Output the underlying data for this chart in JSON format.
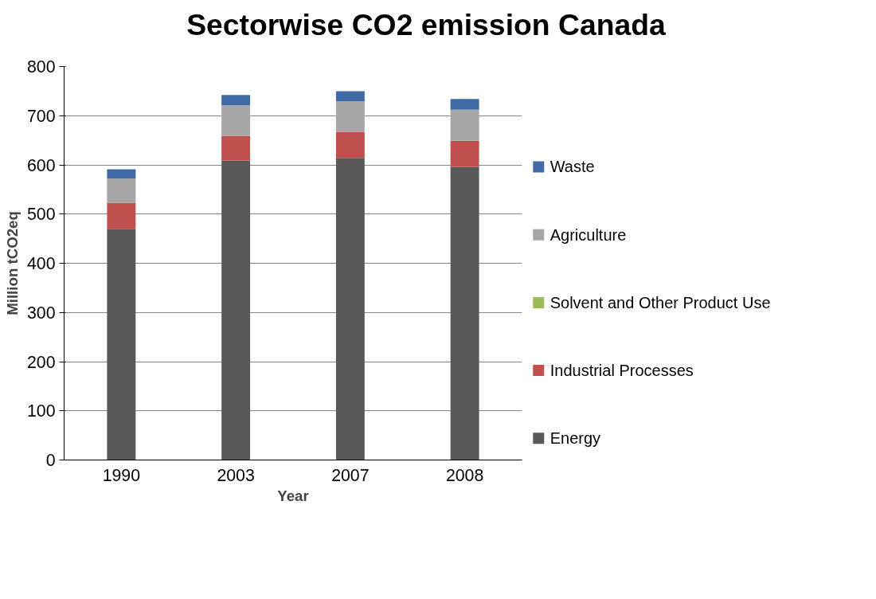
{
  "chart_data": {
    "type": "bar",
    "title": "Sectorwise CO2 emission Canada",
    "xlabel": "Year",
    "ylabel": "Million tCO2eq",
    "categories": [
      "1990",
      "2003",
      "2007",
      "2008"
    ],
    "stacked": true,
    "series": [
      {
        "name": "Energy",
        "color": "#595959",
        "values": [
          470,
          609,
          614,
          596
        ]
      },
      {
        "name": "Industrial Processes",
        "color": "#c0504d",
        "values": [
          53,
          50,
          53,
          53
        ]
      },
      {
        "name": "Solvent and Other Product Use",
        "color": "#9bbb59",
        "values": [
          0,
          0,
          0,
          0
        ]
      },
      {
        "name": "Agriculture",
        "color": "#a6a6a6",
        "values": [
          49,
          62,
          62,
          63
        ]
      },
      {
        "name": "Waste",
        "color": "#3f6aa6",
        "values": [
          19,
          21,
          21,
          22
        ]
      }
    ],
    "ylim": [
      0,
      800
    ],
    "yticks": [
      0,
      100,
      200,
      300,
      400,
      500,
      600,
      700,
      800
    ],
    "grid": "y",
    "legend": "right"
  }
}
